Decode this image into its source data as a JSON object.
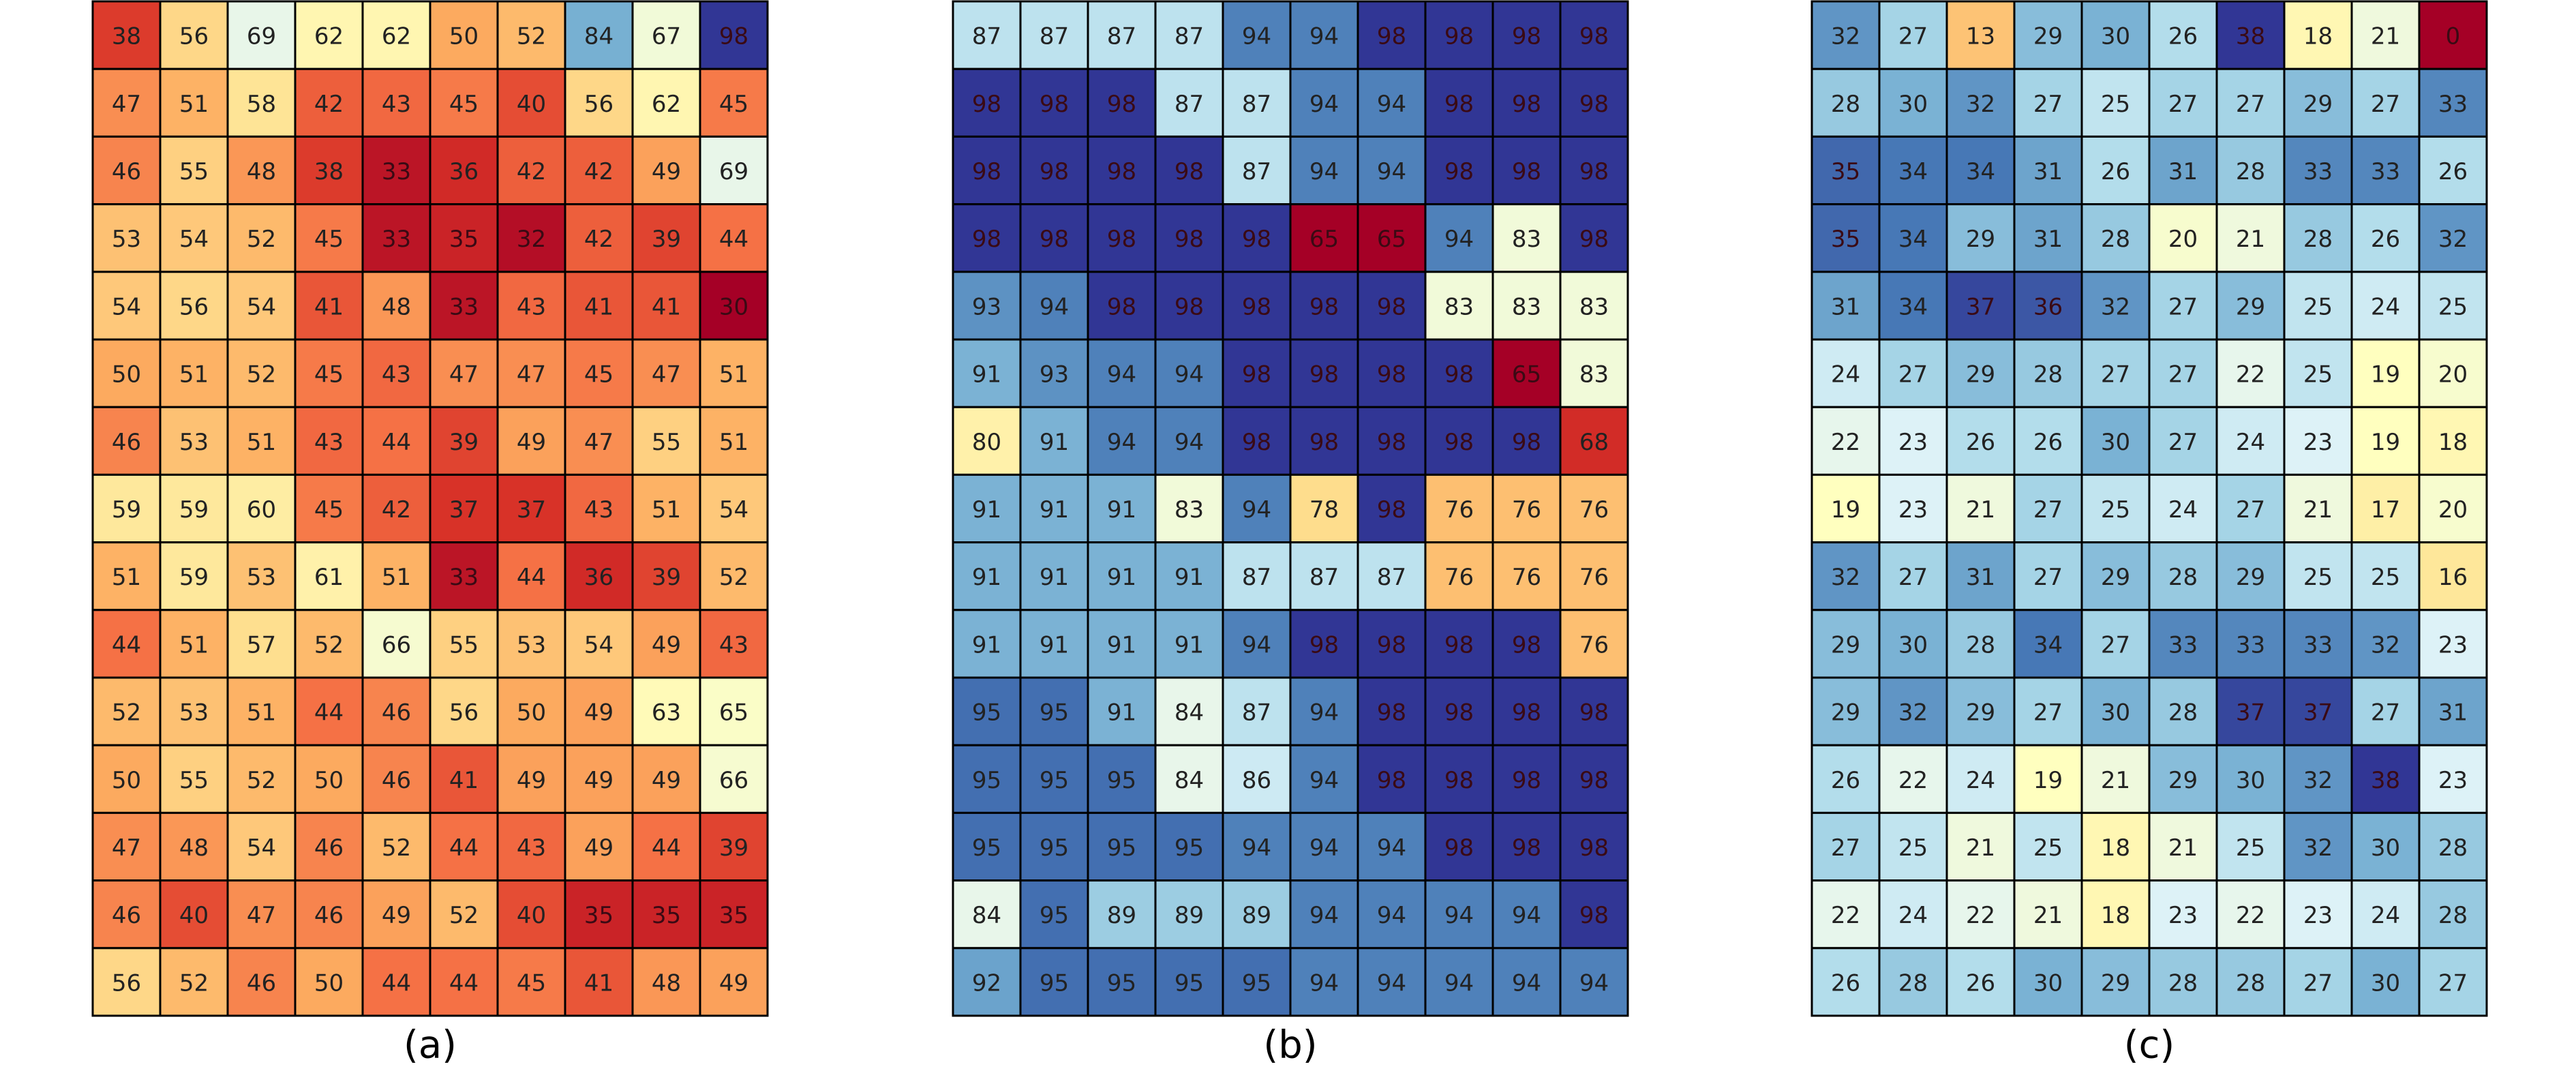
{
  "chart_data": [
    {
      "type": "heatmap",
      "label": "(a)",
      "colormap": "RdYlBu",
      "vmin": 30,
      "vmax": 98,
      "rows": 15,
      "cols": 10,
      "values": [
        [
          38,
          56,
          69,
          62,
          62,
          50,
          52,
          84,
          67,
          98
        ],
        [
          47,
          51,
          58,
          42,
          43,
          45,
          40,
          56,
          62,
          45
        ],
        [
          46,
          55,
          48,
          38,
          33,
          36,
          42,
          42,
          49,
          69
        ],
        [
          53,
          54,
          52,
          45,
          33,
          35,
          32,
          42,
          39,
          44
        ],
        [
          54,
          56,
          54,
          41,
          48,
          33,
          43,
          41,
          41,
          30
        ],
        [
          50,
          51,
          52,
          45,
          43,
          47,
          47,
          45,
          47,
          51
        ],
        [
          46,
          53,
          51,
          43,
          44,
          39,
          49,
          47,
          55,
          51
        ],
        [
          59,
          59,
          60,
          45,
          42,
          37,
          37,
          43,
          51,
          54
        ],
        [
          51,
          59,
          53,
          61,
          51,
          33,
          44,
          36,
          39,
          52
        ],
        [
          44,
          51,
          57,
          52,
          66,
          55,
          53,
          54,
          49,
          43
        ],
        [
          52,
          53,
          51,
          44,
          46,
          56,
          50,
          49,
          63,
          65
        ],
        [
          50,
          55,
          52,
          50,
          46,
          41,
          49,
          49,
          49,
          66
        ],
        [
          47,
          48,
          54,
          46,
          52,
          44,
          43,
          49,
          44,
          39
        ],
        [
          46,
          40,
          47,
          46,
          49,
          52,
          40,
          35,
          35,
          35
        ],
        [
          56,
          52,
          46,
          50,
          44,
          44,
          45,
          41,
          48,
          49
        ]
      ]
    },
    {
      "type": "heatmap",
      "label": "(b)",
      "colormap": "RdYlBu",
      "vmin": 65,
      "vmax": 98,
      "rows": 15,
      "cols": 10,
      "values": [
        [
          87,
          87,
          87,
          87,
          94,
          94,
          98,
          98,
          98,
          98
        ],
        [
          98,
          98,
          98,
          87,
          87,
          94,
          94,
          98,
          98,
          98
        ],
        [
          98,
          98,
          98,
          98,
          87,
          94,
          94,
          98,
          98,
          98
        ],
        [
          98,
          98,
          98,
          98,
          98,
          65,
          65,
          94,
          83,
          98
        ],
        [
          93,
          94,
          98,
          98,
          98,
          98,
          98,
          83,
          83,
          83
        ],
        [
          91,
          93,
          94,
          94,
          98,
          98,
          98,
          98,
          65,
          83
        ],
        [
          80,
          91,
          94,
          94,
          98,
          98,
          98,
          98,
          98,
          68
        ],
        [
          91,
          91,
          91,
          83,
          94,
          78,
          98,
          76,
          76,
          76
        ],
        [
          91,
          91,
          91,
          91,
          87,
          87,
          87,
          76,
          76,
          76
        ],
        [
          91,
          91,
          91,
          91,
          94,
          98,
          98,
          98,
          98,
          76
        ],
        [
          95,
          95,
          91,
          84,
          87,
          94,
          98,
          98,
          98,
          98
        ],
        [
          95,
          95,
          95,
          84,
          86,
          94,
          98,
          98,
          98,
          98
        ],
        [
          95,
          95,
          95,
          95,
          94,
          94,
          94,
          98,
          98,
          98
        ],
        [
          84,
          95,
          89,
          89,
          89,
          94,
          94,
          94,
          94,
          98
        ],
        [
          92,
          95,
          95,
          95,
          95,
          94,
          94,
          94,
          94,
          94
        ]
      ]
    },
    {
      "type": "heatmap",
      "label": "(c)",
      "colormap": "RdYlBu",
      "vmin": 0,
      "vmax": 38,
      "rows": 15,
      "cols": 10,
      "values": [
        [
          32,
          27,
          13,
          29,
          30,
          26,
          38,
          18,
          21,
          0
        ],
        [
          28,
          30,
          32,
          27,
          25,
          27,
          27,
          29,
          27,
          33
        ],
        [
          35,
          34,
          34,
          31,
          26,
          31,
          28,
          33,
          33,
          26
        ],
        [
          35,
          34,
          29,
          31,
          28,
          20,
          21,
          28,
          26,
          32
        ],
        [
          31,
          34,
          37,
          36,
          32,
          27,
          29,
          25,
          24,
          25
        ],
        [
          24,
          27,
          29,
          28,
          27,
          27,
          22,
          25,
          19,
          20
        ],
        [
          22,
          23,
          26,
          26,
          30,
          27,
          24,
          23,
          19,
          18
        ],
        [
          19,
          23,
          21,
          27,
          25,
          24,
          27,
          21,
          17,
          20
        ],
        [
          32,
          27,
          31,
          27,
          29,
          28,
          29,
          25,
          25,
          16
        ],
        [
          29,
          30,
          28,
          34,
          27,
          33,
          33,
          33,
          32,
          23
        ],
        [
          29,
          32,
          29,
          27,
          30,
          28,
          37,
          37,
          27,
          31
        ],
        [
          26,
          22,
          24,
          19,
          21,
          29,
          30,
          32,
          38,
          23
        ],
        [
          27,
          25,
          21,
          25,
          18,
          21,
          25,
          32,
          30,
          28
        ],
        [
          22,
          24,
          22,
          21,
          18,
          23,
          22,
          23,
          24,
          28
        ],
        [
          26,
          28,
          26,
          30,
          29,
          28,
          28,
          27,
          30,
          27
        ]
      ]
    }
  ]
}
